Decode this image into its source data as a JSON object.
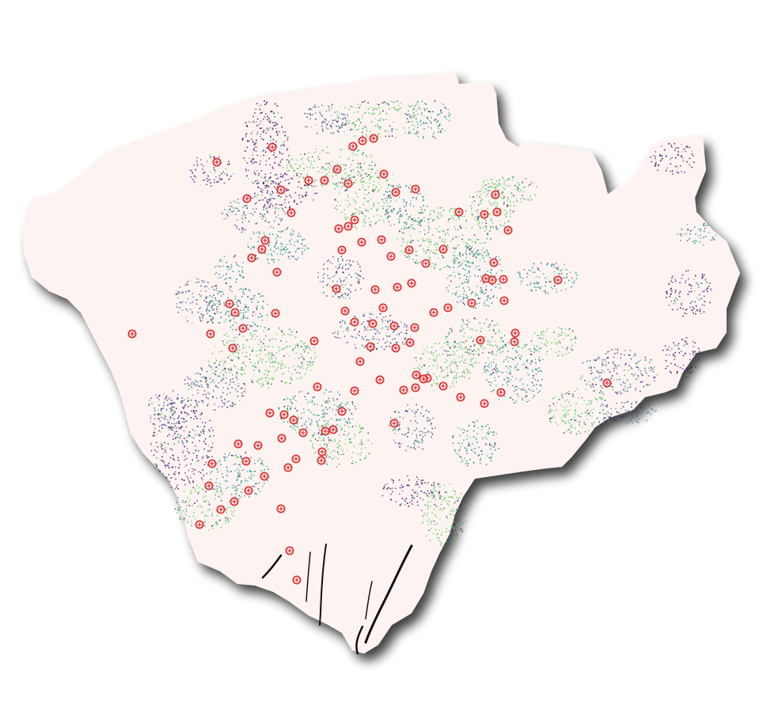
{
  "map": {
    "region_fill": "#fdf4f1",
    "shadow_color": "#000000",
    "marker_color": "#e03131",
    "marker_icon": "circle-cross-marker",
    "stream_palette": [
      "#440f6b",
      "#3b528b",
      "#21908d",
      "#5ec962"
    ],
    "channel_color": "#111111"
  }
}
